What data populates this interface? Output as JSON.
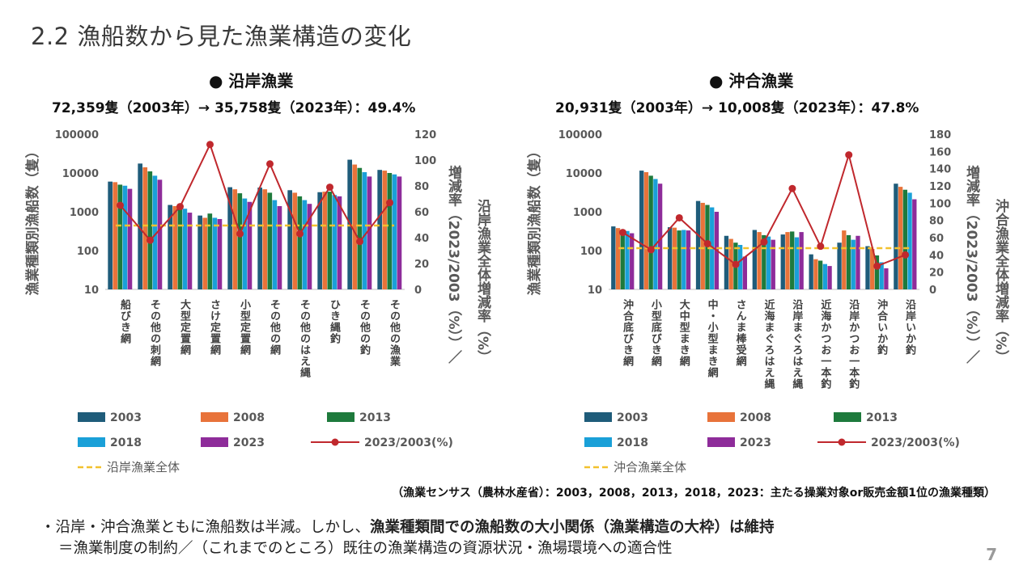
{
  "page": {
    "title": "2.2 漁船数から見た漁業構造の変化",
    "source": "（漁業センサス（農林水産省）：2003，2008，2013，2018，2023：主たる操業対象or販売金額1位の漁業種類）",
    "note_line1_prefix": "・沿岸・沖合漁業ともに漁船数は半減。しかし、",
    "note_line1_bold": "漁業種類間での漁船数の大小関係（漁業構造の大枠）は維持",
    "note_line2": "＝漁業制度の制約／（これまでのところ）既往の漁業構造の資源状況・漁場環境への適合性",
    "page_number": "7"
  },
  "colors": {
    "2003": "#1f5c7a",
    "2008": "#e8733a",
    "2013": "#1e7a3c",
    "2018": "#1aa0d8",
    "2023": "#8e2c9a",
    "ratio": "#c0282d",
    "overall": "#f2c12e"
  },
  "chart_data": [
    {
      "type": "bar",
      "heading": "● 沿岸漁業",
      "summary": "72,359隻（2003年）→ 35,758隻（2023年）：49.4%",
      "categories": [
        "船びき網",
        "その他の刺網",
        "大型定置網",
        "さけ定置網",
        "小型定置網",
        "その他の網",
        "その他のはえ縄",
        "ひき縄釣",
        "その他の釣",
        "その他の漁業"
      ],
      "ylabel": "漁業種類別漁船数（隻）",
      "y2label_1": "増減率（2023/2003（%））／",
      "y2label_2": "沿岸漁業全体増減率（%）",
      "yscale": "log",
      "ylim": [
        10,
        100000
      ],
      "yticks": [
        "10",
        "100",
        "1000",
        "10000",
        "100000"
      ],
      "y2lim": [
        0,
        120
      ],
      "y2ticks": [
        "0",
        "20",
        "40",
        "60",
        "80",
        "100",
        "120"
      ],
      "series": [
        {
          "name": "2003",
          "values": [
            6000,
            17500,
            1500,
            800,
            4300,
            4200,
            3600,
            3200,
            22000,
            12000
          ]
        },
        {
          "name": "2008",
          "values": [
            5800,
            14000,
            1400,
            700,
            3800,
            3800,
            3100,
            3300,
            16500,
            11500
          ]
        },
        {
          "name": "2013",
          "values": [
            5000,
            11000,
            1300,
            900,
            3000,
            3100,
            2500,
            3300,
            13500,
            10000
          ]
        },
        {
          "name": "2018",
          "values": [
            4700,
            8500,
            1200,
            700,
            2200,
            2000,
            2000,
            2700,
            10500,
            9200
          ]
        },
        {
          "name": "2023",
          "values": [
            3900,
            6700,
            950,
            650,
            1800,
            1400,
            1600,
            2500,
            8100,
            8100
          ]
        },
        {
          "name": "2023/2003(%)",
          "axis": "right",
          "values": [
            65,
            38,
            64,
            112,
            43,
            97,
            43,
            79,
            37,
            67
          ]
        }
      ],
      "overall": {
        "name": "沿岸漁業全体",
        "value": 49.4
      },
      "legend": [
        "2003",
        "2008",
        "2013",
        "2018",
        "2023",
        "2023/2003(%)",
        "沿岸漁業全体"
      ]
    },
    {
      "type": "bar",
      "heading": "● 沖合漁業",
      "summary": "20,931隻（2003年）→ 10,008隻（2023年）：47.8%",
      "categories": [
        "沖合底びき網",
        "小型底びき網",
        "大中型まき網",
        "中・小型まき網",
        "さんま棒受網",
        "近海まぐろはえ縄",
        "沿岸まぐろはえ縄",
        "近海かつお一本釣",
        "沿岸かつお一本釣",
        "沖合いか釣",
        "沿岸いか釣"
      ],
      "ylabel": "漁業種類別漁船数（隻）",
      "y2label_1": "増減率（2023/2003（%））／",
      "y2label_2": "沖合漁業全体増減率（%）",
      "yscale": "log",
      "ylim": [
        10,
        100000
      ],
      "yticks": [
        "10",
        "100",
        "1000",
        "10000",
        "100000"
      ],
      "y2lim": [
        0,
        180
      ],
      "y2ticks": [
        "0",
        "20",
        "40",
        "60",
        "80",
        "100",
        "120",
        "140",
        "160",
        "180"
      ],
      "series": [
        {
          "name": "2003",
          "values": [
            420,
            11500,
            400,
            1900,
            240,
            340,
            260,
            80,
            160,
            130,
            5300
          ]
        },
        {
          "name": "2008",
          "values": [
            380,
            10500,
            390,
            1700,
            200,
            300,
            300,
            60,
            330,
            110,
            4400
          ]
        },
        {
          "name": "2013",
          "values": [
            330,
            8500,
            330,
            1500,
            160,
            250,
            310,
            55,
            250,
            75,
            3700
          ]
        },
        {
          "name": "2018",
          "values": [
            320,
            7000,
            340,
            1300,
            140,
            230,
            220,
            45,
            190,
            50,
            3100
          ]
        },
        {
          "name": "2023",
          "values": [
            280,
            5300,
            330,
            1000,
            70,
            190,
            300,
            40,
            240,
            35,
            2100
          ]
        },
        {
          "name": "2023/2003(%)",
          "axis": "right",
          "values": [
            66,
            46,
            83,
            53,
            29,
            55,
            117,
            50,
            156,
            27,
            40
          ]
        }
      ],
      "overall": {
        "name": "沖合漁業全体",
        "value": 47.8
      },
      "legend": [
        "2003",
        "2008",
        "2013",
        "2018",
        "2023",
        "2023/2003(%)",
        "沖合漁業全体"
      ]
    }
  ]
}
